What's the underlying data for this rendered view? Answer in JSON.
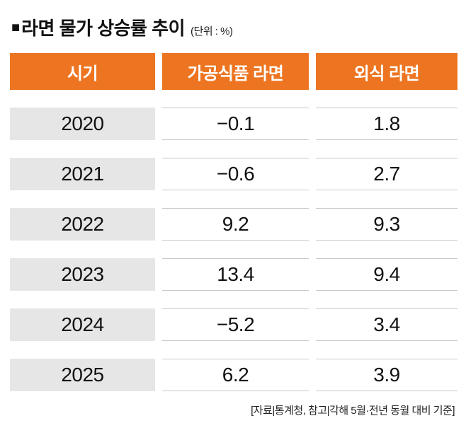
{
  "title": {
    "bullet": "■",
    "text": "라면 물가 상승률 추이",
    "unit": "(단위 : %)"
  },
  "table": {
    "headers": [
      "시기",
      "가공식품 라면",
      "외식 라면"
    ],
    "rows": [
      {
        "period": "2020",
        "processed": "−0.1",
        "dining": "1.8"
      },
      {
        "period": "2021",
        "processed": "−0.6",
        "dining": "2.7"
      },
      {
        "period": "2022",
        "processed": "9.2",
        "dining": "9.3"
      },
      {
        "period": "2023",
        "processed": "13.4",
        "dining": "9.4"
      },
      {
        "period": "2024",
        "processed": "−5.2",
        "dining": "3.4"
      },
      {
        "period": "2025",
        "processed": "6.2",
        "dining": "3.9"
      }
    ]
  },
  "footer": {
    "source": "[자료|통계청, 참고|각해 5월·전년 동월 대비 기준]"
  },
  "colors": {
    "header_bg": "#ed7521",
    "period_bg": "#e6e6e6",
    "row_line": "#c9c9c9"
  },
  "chart_data": {
    "type": "table",
    "title": "라면 물가 상승률 추이",
    "unit": "%",
    "columns": [
      "시기",
      "가공식품 라면",
      "외식 라면"
    ],
    "rows": [
      [
        "2020",
        -0.1,
        1.8
      ],
      [
        "2021",
        -0.6,
        2.7
      ],
      [
        "2022",
        9.2,
        9.3
      ],
      [
        "2023",
        13.4,
        9.4
      ],
      [
        "2024",
        -5.2,
        3.4
      ],
      [
        "2025",
        6.2,
        3.9
      ]
    ],
    "source": "[자료|통계청, 참고|각해 5월·전년 동월 대비 기준]"
  }
}
